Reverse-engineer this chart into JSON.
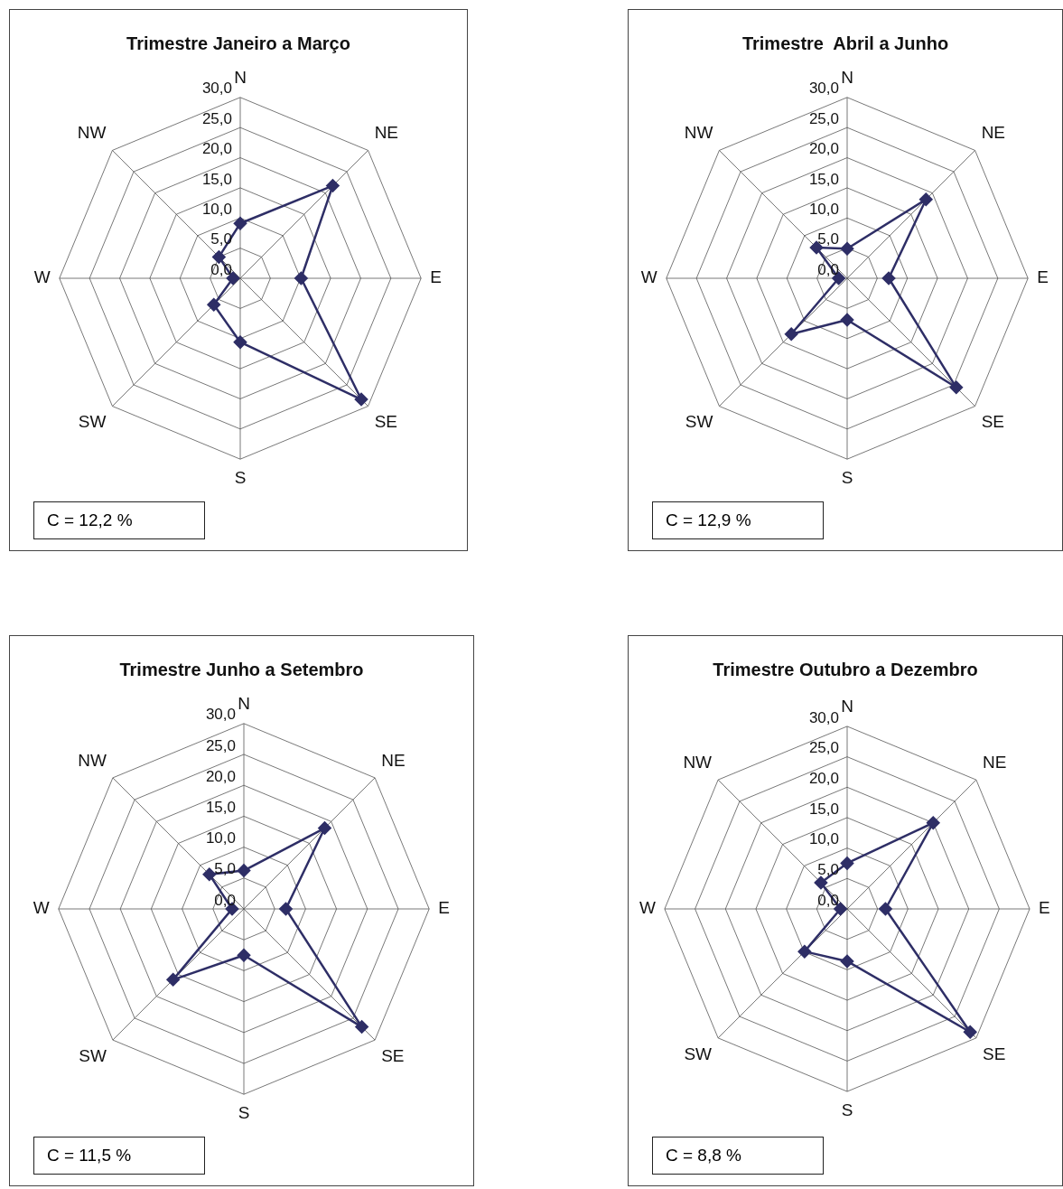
{
  "chart_data": [
    {
      "type": "radar",
      "title": "Trimestre Janeiro a Março",
      "categories": [
        "N",
        "NE",
        "E",
        "SE",
        "S",
        "SW",
        "W",
        "NW"
      ],
      "series": [
        {
          "color": "#2e2e66",
          "values": [
            9.1,
            21.7,
            10.1,
            28.4,
            10.6,
            6.2,
            1.2,
            5.0
          ]
        }
      ],
      "ylim": [
        0,
        30
      ],
      "yticks": [
        {
          "value": 0,
          "label": "0,0"
        },
        {
          "value": 5,
          "label": "5,0"
        },
        {
          "value": 10,
          "label": "10,0"
        },
        {
          "value": 15,
          "label": "15,0"
        },
        {
          "value": 20,
          "label": "20,0"
        },
        {
          "value": 25,
          "label": "25,0"
        },
        {
          "value": 30,
          "label": "30,0"
        }
      ],
      "grid": true,
      "marker": "diamond",
      "annotations": [
        "C = 12,2 %"
      ]
    },
    {
      "type": "radar",
      "title": "Trimestre  Abril a Junho",
      "categories": [
        "N",
        "NE",
        "E",
        "SE",
        "S",
        "SW",
        "W",
        "NW"
      ],
      "series": [
        {
          "color": "#2e2e66",
          "values": [
            4.9,
            18.5,
            6.9,
            25.6,
            6.9,
            13.1,
            1.4,
            7.2
          ]
        }
      ],
      "ylim": [
        0,
        30
      ],
      "yticks": [
        {
          "value": 0,
          "label": "0,0"
        },
        {
          "value": 5,
          "label": "5,0"
        },
        {
          "value": 10,
          "label": "10,0"
        },
        {
          "value": 15,
          "label": "15,0"
        },
        {
          "value": 20,
          "label": "20,0"
        },
        {
          "value": 25,
          "label": "25,0"
        },
        {
          "value": 30,
          "label": "30,0"
        }
      ],
      "grid": true,
      "marker": "diamond",
      "annotations": [
        "C = 12,9 %"
      ]
    },
    {
      "type": "radar",
      "title": "Trimestre Junho a Setembro",
      "categories": [
        "N",
        "NE",
        "E",
        "SE",
        "S",
        "SW",
        "W",
        "NW"
      ],
      "series": [
        {
          "color": "#2e2e66",
          "values": [
            6.2,
            18.5,
            6.8,
            27.0,
            7.5,
            16.2,
            1.9,
            7.9
          ]
        }
      ],
      "ylim": [
        0,
        30
      ],
      "yticks": [
        {
          "value": 0,
          "label": "0,0"
        },
        {
          "value": 5,
          "label": "5,0"
        },
        {
          "value": 10,
          "label": "10,0"
        },
        {
          "value": 15,
          "label": "15,0"
        },
        {
          "value": 20,
          "label": "20,0"
        },
        {
          "value": 25,
          "label": "25,0"
        },
        {
          "value": 30,
          "label": "30,0"
        }
      ],
      "grid": true,
      "marker": "diamond",
      "annotations": [
        "C = 11,5 %"
      ]
    },
    {
      "type": "radar",
      "title": "Trimestre Outubro a Dezembro",
      "categories": [
        "N",
        "NE",
        "E",
        "SE",
        "S",
        "SW",
        "W",
        "NW"
      ],
      "series": [
        {
          "color": "#2e2e66",
          "values": [
            7.5,
            20.0,
            6.3,
            28.6,
            8.6,
            9.9,
            1.1,
            6.1
          ]
        }
      ],
      "ylim": [
        0,
        30
      ],
      "yticks": [
        {
          "value": 0,
          "label": "0,0"
        },
        {
          "value": 5,
          "label": "5,0"
        },
        {
          "value": 10,
          "label": "10,0"
        },
        {
          "value": 15,
          "label": "15,0"
        },
        {
          "value": 20,
          "label": "20,0"
        },
        {
          "value": 25,
          "label": "25,0"
        },
        {
          "value": 30,
          "label": "30,0"
        }
      ],
      "grid": true,
      "marker": "diamond",
      "annotations": [
        "C = 8,8 %"
      ]
    }
  ]
}
